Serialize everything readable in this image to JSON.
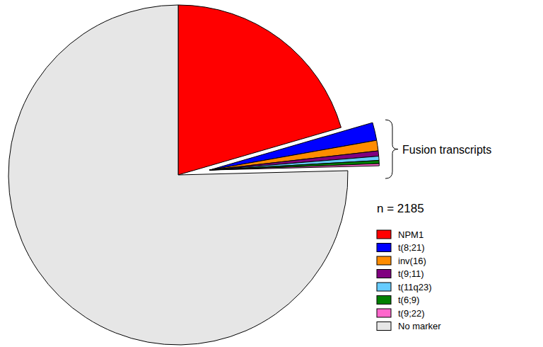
{
  "chart_data": {
    "type": "pie",
    "categories": [
      "NPM1",
      "t(8;21)",
      "inv(16)",
      "t(9;11)",
      "t(11q23)",
      "t(6;9)",
      "t(9;22)",
      "No marker"
    ],
    "values": [
      20.5,
      1.7,
      1.0,
      0.5,
      0.4,
      0.3,
      0.2,
      75.4
    ],
    "colors": [
      "#ff0000",
      "#0000ff",
      "#ff8c00",
      "#800080",
      "#66ccff",
      "#008000",
      "#ff66cc",
      "#e6e6e6"
    ],
    "annotations": [
      "Fusion transcripts",
      "n = 2185"
    ],
    "legend": "right"
  }
}
